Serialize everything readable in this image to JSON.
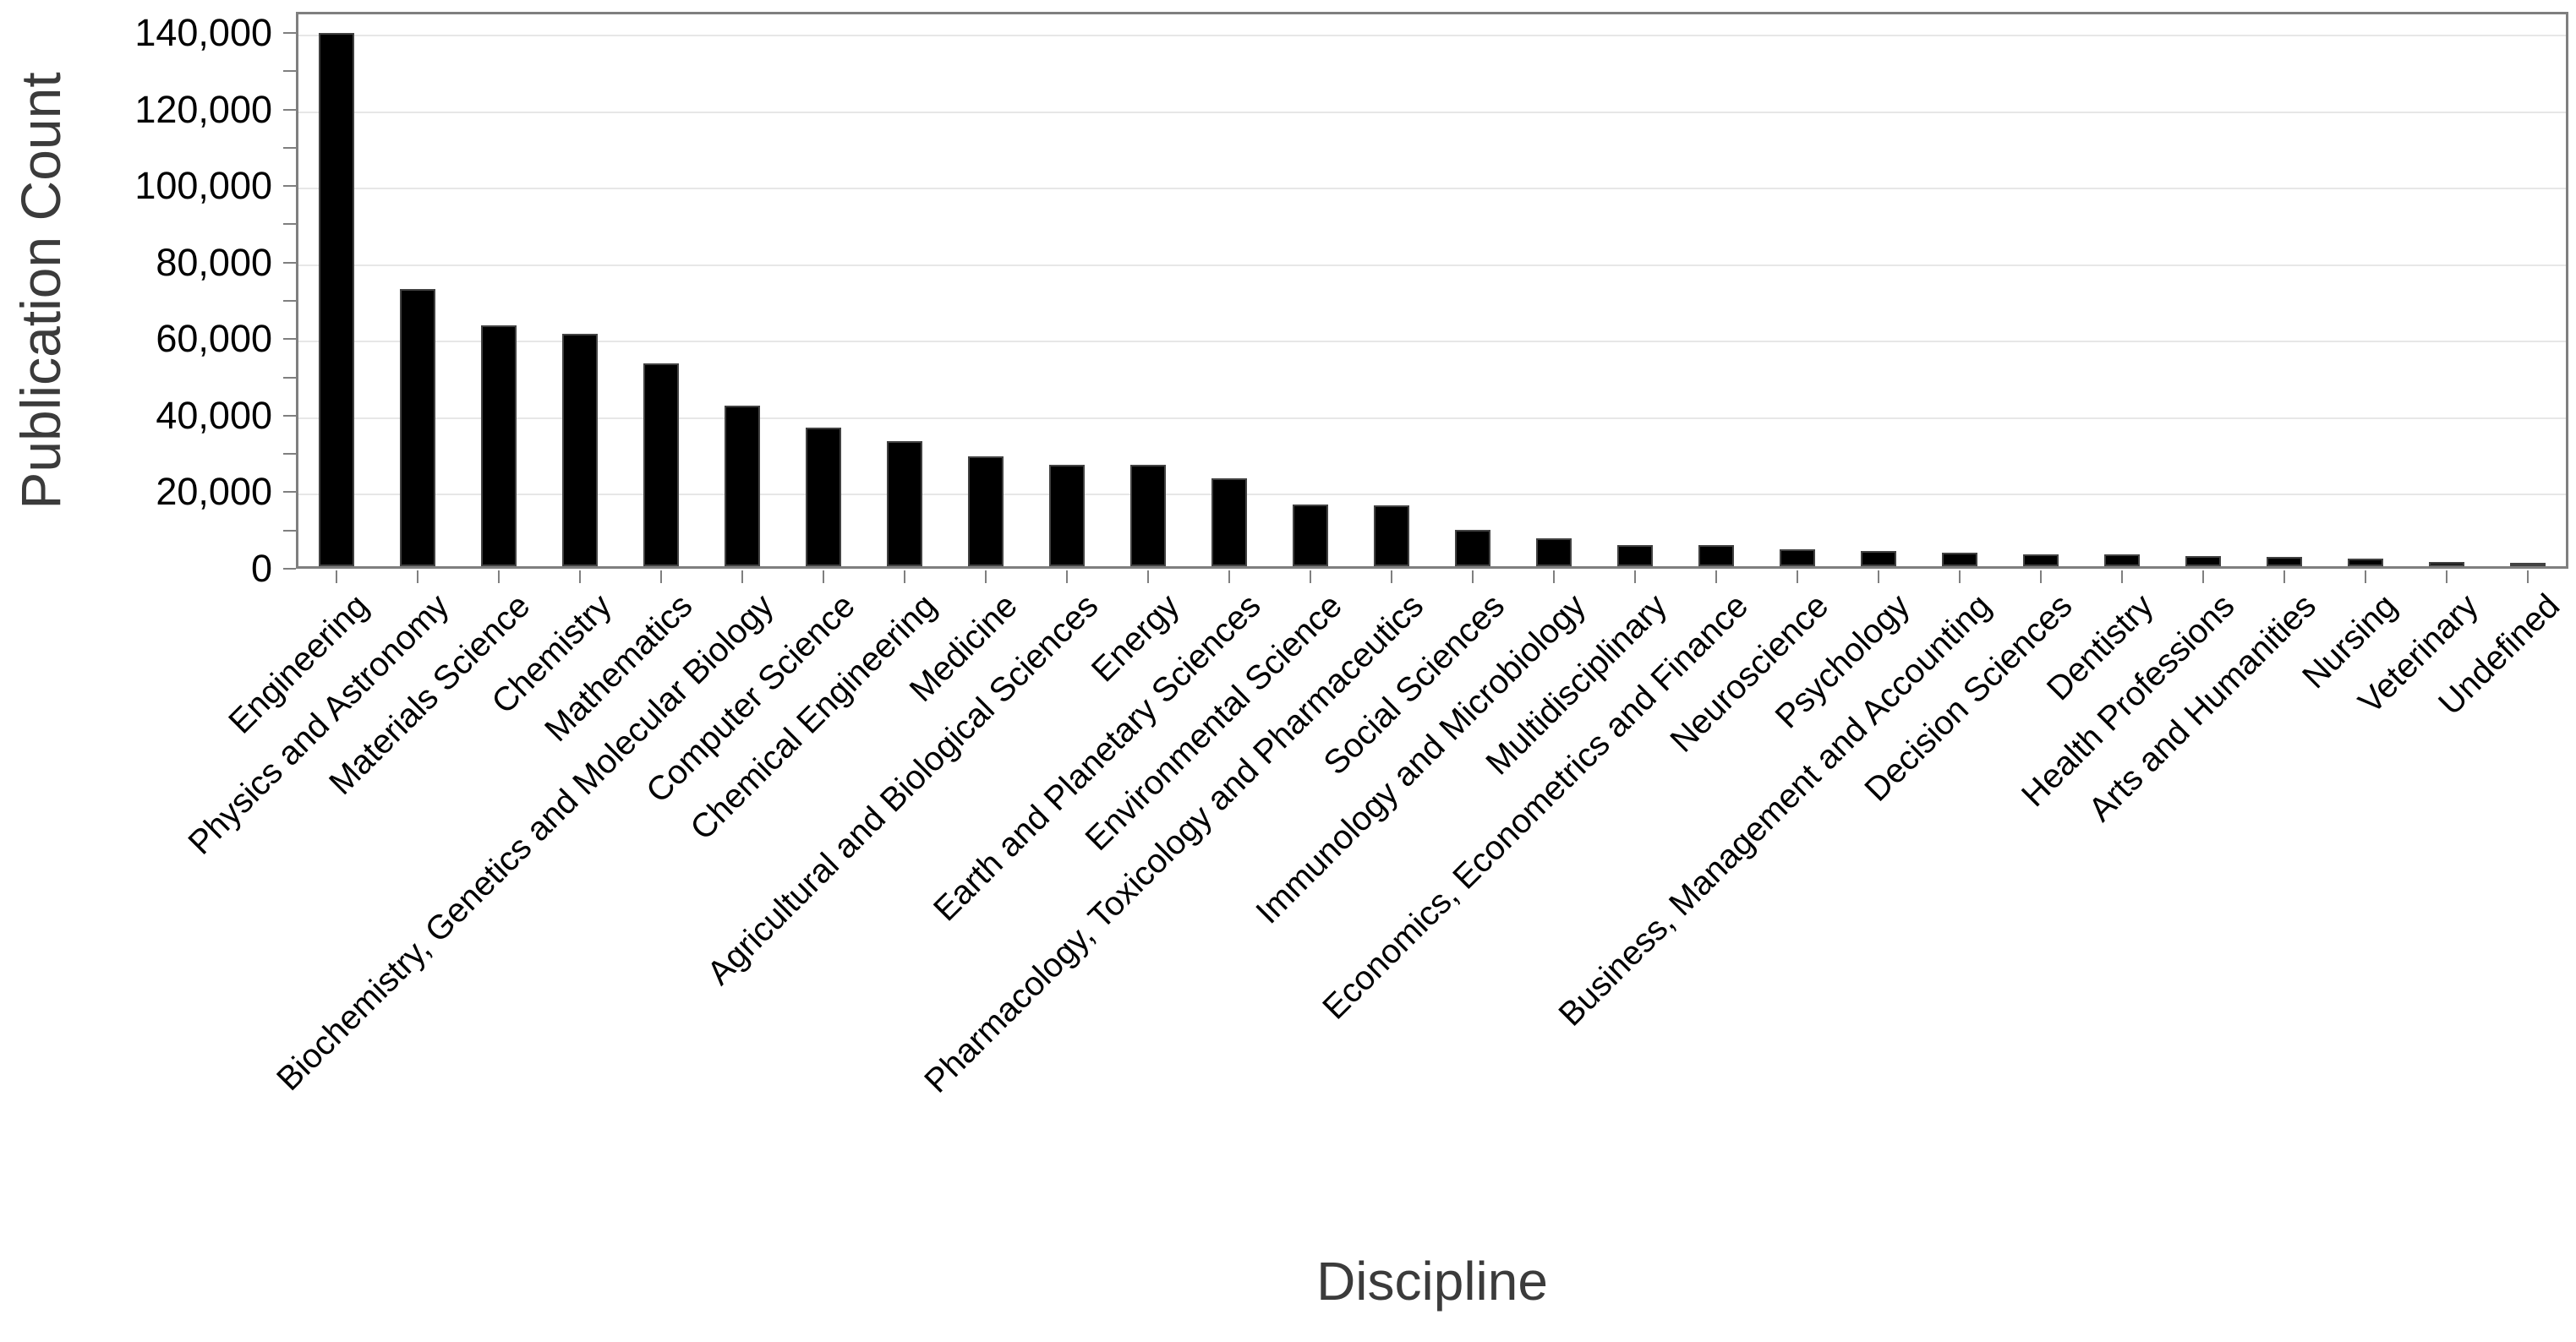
{
  "chart_data": {
    "type": "bar",
    "title": "",
    "xlabel": "Discipline",
    "ylabel": "Publication Count",
    "categories": [
      "Engineering",
      "Physics and Astronomy",
      "Materials Science",
      "Chemistry",
      "Mathematics",
      "Biochemistry, Genetics and Molecular Biology",
      "Computer Science",
      "Chemical Engineering",
      "Medicine",
      "Agricultural and Biological Sciences",
      "Energy",
      "Earth and Planetary Sciences",
      "Environmental Science",
      "Pharmacology, Toxicology and Pharmaceutics",
      "Social Sciences",
      "Immunology and Microbiology",
      "Multidisciplinary",
      "Economics, Econometrics and Finance",
      "Neuroscience",
      "Psychology",
      "Business, Management and Accounting",
      "Decision Sciences",
      "Dentistry",
      "Health Professions",
      "Arts and Humanities",
      "Nursing",
      "Veterinary",
      "Undefined"
    ],
    "values": [
      139300,
      72500,
      63000,
      60800,
      53000,
      42000,
      36200,
      32600,
      28600,
      26600,
      26400,
      23000,
      16200,
      15800,
      9600,
      7300,
      5600,
      5500,
      4500,
      4000,
      3600,
      3100,
      3000,
      2600,
      2500,
      2000,
      1000,
      700
    ],
    "ylim": [
      0,
      145000
    ],
    "ytick_interval": 20000,
    "ytick_minor_interval": 10000,
    "ytick_labels": [
      "0",
      "20,000",
      "40,000",
      "60,000",
      "80,000",
      "100,000",
      "120,000",
      "140,000"
    ],
    "xtick_rotation_deg": 45,
    "grid": "horizontal-major-only",
    "legend": "none",
    "colors": {
      "bar_fill": "#000000",
      "bar_edge": "#424242",
      "gridline": "#e7e7e7",
      "axis_frame": "#7f7f7f",
      "tick_mark": "#7f7f7f",
      "tick_label_text": "#000000",
      "axis_title_text": "#3b3b3b",
      "background": "#ffffff"
    }
  }
}
